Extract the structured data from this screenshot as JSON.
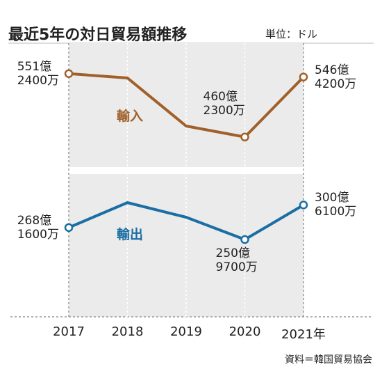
{
  "title": "最近5年の対日貿易額推移",
  "subtitle": "単位：ドル",
  "source": "資料＝韓国貿易協会",
  "chart_data": [
    {
      "type": "line",
      "categories": [
        "2017",
        "2018",
        "2019",
        "2020",
        "2021年"
      ],
      "series": [
        {
          "name": "輸入",
          "color": "#a0602a",
          "values": [
            55124000000,
            54500000000,
            47600000000,
            46023000000,
            54642000000
          ],
          "value_labels": [
            "551億\n2400万",
            null,
            null,
            "460億\n2300万",
            "546億\n4200万"
          ]
        }
      ],
      "ylim": [
        41700000000,
        59500000000
      ]
    },
    {
      "type": "line",
      "series": [
        {
          "name": "輸出",
          "color": "#1a6ea3",
          "values": [
            26816000000,
            30400000000,
            28300000000,
            25097000000,
            30061000000
          ],
          "value_labels": [
            "268億\n1600万",
            null,
            null,
            "250億\n9700万",
            "300億\n6100万"
          ]
        }
      ],
      "ylim": [
        14000000000,
        34500000000
      ]
    }
  ]
}
